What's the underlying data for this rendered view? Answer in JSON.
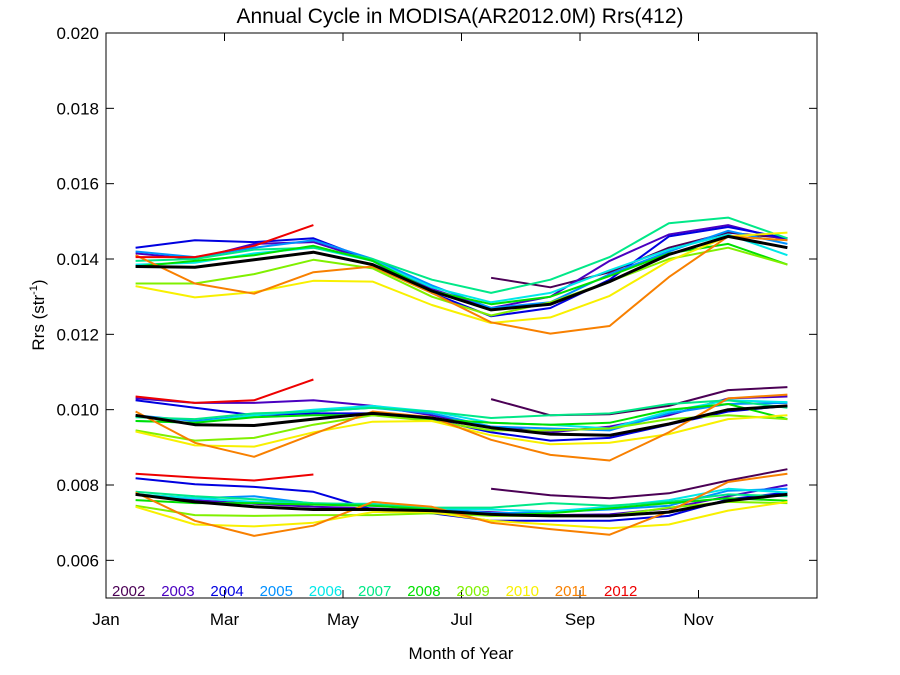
{
  "chart_data": {
    "type": "line",
    "title": "Annual Cycle in MODISA(AR2012.0M) Rrs(412)",
    "xlabel": "Month of Year",
    "ylabel": "Rrs (str",
    "ylabel_sup": "-1",
    "ylabel_end": ")",
    "xlim": [
      0,
      12
    ],
    "ylim": [
      0.005,
      0.02
    ],
    "x_ticks": [
      {
        "value": 0,
        "label": "Jan"
      },
      {
        "value": 2,
        "label": "Mar"
      },
      {
        "value": 4,
        "label": "May"
      },
      {
        "value": 6,
        "label": "Jul"
      },
      {
        "value": 8,
        "label": "Sep"
      },
      {
        "value": 10,
        "label": "Nov"
      }
    ],
    "y_ticks": [
      {
        "value": 0.006,
        "label": "0.006"
      },
      {
        "value": 0.008,
        "label": "0.008"
      },
      {
        "value": 0.01,
        "label": "0.010"
      },
      {
        "value": 0.012,
        "label": "0.012"
      },
      {
        "value": 0.014,
        "label": "0.014"
      },
      {
        "value": 0.016,
        "label": "0.016"
      },
      {
        "value": 0.018,
        "label": "0.018"
      },
      {
        "value": 0.02,
        "label": "0.020"
      }
    ],
    "x_months": [
      0.5,
      1.5,
      2.5,
      3.5,
      4.5,
      5.5,
      6.5,
      7.5,
      8.5,
      9.5,
      10.5,
      11.5
    ],
    "grid": false,
    "legend_position": "bottom-left inside plot",
    "series": [
      {
        "name": "2002",
        "color": "#4b0055",
        "upper": [
          null,
          null,
          null,
          null,
          null,
          null,
          0.0135,
          0.01325,
          0.01365,
          0.0143,
          0.0147,
          0.01455
        ],
        "middle": [
          null,
          null,
          null,
          null,
          null,
          null,
          0.01028,
          0.00985,
          0.00988,
          0.0101,
          0.01052,
          0.0106
        ],
        "lower": [
          null,
          null,
          null,
          null,
          null,
          null,
          0.0079,
          0.00773,
          0.00765,
          0.00778,
          0.00812,
          0.00842
        ]
      },
      {
        "name": "2003",
        "color": "#4a00c0",
        "upper": [
          0.01415,
          0.014,
          0.0144,
          0.01445,
          0.01395,
          0.0132,
          0.0127,
          0.013,
          0.01395,
          0.01465,
          0.0149,
          0.0145
        ],
        "middle": [
          0.0103,
          0.01018,
          0.01018,
          0.01025,
          0.0101,
          0.00985,
          0.00955,
          0.0094,
          0.00955,
          0.00985,
          0.0103,
          0.01035
        ],
        "lower": [
          0.00775,
          0.0076,
          0.0075,
          0.00742,
          0.00738,
          0.00732,
          0.00728,
          0.0072,
          0.00722,
          0.00738,
          0.0077,
          0.008
        ]
      },
      {
        "name": "2004",
        "color": "#0000e0",
        "upper": [
          0.0143,
          0.0145,
          0.01445,
          0.01455,
          0.01395,
          0.0131,
          0.01248,
          0.0127,
          0.01345,
          0.0146,
          0.01485,
          0.01455
        ],
        "middle": [
          0.01025,
          0.01005,
          0.00985,
          0.0099,
          0.0099,
          0.00975,
          0.0094,
          0.00918,
          0.00925,
          0.0096,
          0.00995,
          0.0101
        ],
        "lower": [
          0.00818,
          0.00802,
          0.00795,
          0.00782,
          0.00735,
          0.00725,
          0.00705,
          0.00705,
          0.00705,
          0.00718,
          0.00762,
          0.0078
        ]
      },
      {
        "name": "2005",
        "color": "#0090ff",
        "upper": [
          0.0142,
          0.01405,
          0.0143,
          0.0145,
          0.014,
          0.0133,
          0.0127,
          0.01285,
          0.0136,
          0.0142,
          0.01475,
          0.0144
        ],
        "middle": [
          0.00985,
          0.0097,
          0.00985,
          0.00995,
          0.01005,
          0.0099,
          0.00955,
          0.0095,
          0.00945,
          0.0099,
          0.01015,
          0.01018
        ],
        "lower": [
          0.00775,
          0.00765,
          0.0077,
          0.0075,
          0.00745,
          0.0074,
          0.00725,
          0.00728,
          0.00735,
          0.00745,
          0.00785,
          0.0079
        ]
      },
      {
        "name": "2006",
        "color": "#00e8e8",
        "upper": [
          0.01385,
          0.0139,
          0.01415,
          0.0143,
          0.01395,
          0.01325,
          0.01285,
          0.0131,
          0.0137,
          0.01425,
          0.01465,
          0.0141
        ],
        "middle": [
          0.0097,
          0.00965,
          0.00985,
          0.01,
          0.0101,
          0.00995,
          0.00965,
          0.0096,
          0.0095,
          0.00995,
          0.01025,
          0.0102
        ],
        "lower": [
          0.00775,
          0.00765,
          0.00755,
          0.0075,
          0.0075,
          0.00738,
          0.00735,
          0.0073,
          0.00742,
          0.0076,
          0.0079,
          0.0078
        ]
      },
      {
        "name": "2007",
        "color": "#00e888",
        "upper": [
          0.01395,
          0.014,
          0.01425,
          0.0143,
          0.014,
          0.01345,
          0.0131,
          0.01345,
          0.01405,
          0.01495,
          0.0151,
          0.01455
        ],
        "middle": [
          0.0098,
          0.00975,
          0.0099,
          0.00995,
          0.01005,
          0.00995,
          0.00978,
          0.00985,
          0.0099,
          0.01015,
          0.01025,
          0.01005
        ],
        "lower": [
          0.00782,
          0.0077,
          0.00762,
          0.00752,
          0.00748,
          0.0074,
          0.0074,
          0.00752,
          0.00745,
          0.00755,
          0.00775,
          0.0077
        ]
      },
      {
        "name": "2008",
        "color": "#00e000",
        "upper": [
          0.0138,
          0.01395,
          0.0141,
          0.01435,
          0.01395,
          0.01315,
          0.0128,
          0.013,
          0.01355,
          0.01415,
          0.0144,
          0.01385
        ],
        "middle": [
          0.0097,
          0.00965,
          0.0098,
          0.00985,
          0.00985,
          0.00975,
          0.00965,
          0.0096,
          0.00965,
          0.01,
          0.01015,
          0.00975
        ],
        "lower": [
          0.0076,
          0.00752,
          0.00752,
          0.00748,
          0.00745,
          0.00735,
          0.0072,
          0.00725,
          0.00738,
          0.00752,
          0.00765,
          0.00758
        ]
      },
      {
        "name": "2009",
        "color": "#80f000",
        "upper": [
          0.01335,
          0.01335,
          0.0136,
          0.01398,
          0.01375,
          0.013,
          0.0125,
          0.01285,
          0.0134,
          0.014,
          0.0143,
          0.01385
        ],
        "middle": [
          0.00945,
          0.00918,
          0.00925,
          0.0096,
          0.00985,
          0.0097,
          0.00945,
          0.00945,
          0.0095,
          0.00975,
          0.00985,
          0.00975
        ],
        "lower": [
          0.00745,
          0.0072,
          0.00718,
          0.0072,
          0.0072,
          0.00725,
          0.00718,
          0.00718,
          0.00718,
          0.0074,
          0.00755,
          0.00752
        ]
      },
      {
        "name": "2010",
        "color": "#f8f000",
        "upper": [
          0.01328,
          0.01298,
          0.01312,
          0.01342,
          0.0134,
          0.01278,
          0.0123,
          0.01245,
          0.01302,
          0.01395,
          0.0146,
          0.0147
        ],
        "middle": [
          0.00942,
          0.00905,
          0.00902,
          0.0094,
          0.00968,
          0.0097,
          0.00932,
          0.00908,
          0.00912,
          0.00935,
          0.00975,
          0.00985
        ],
        "lower": [
          0.00742,
          0.00695,
          0.0069,
          0.007,
          0.00728,
          0.00728,
          0.00705,
          0.00695,
          0.00685,
          0.00695,
          0.00732,
          0.00755
        ]
      },
      {
        "name": "2011",
        "color": "#f88000",
        "upper": [
          0.0141,
          0.01335,
          0.01308,
          0.01365,
          0.0138,
          0.0131,
          0.01232,
          0.01202,
          0.01222,
          0.01352,
          0.0146,
          0.0145
        ],
        "middle": [
          0.00995,
          0.00912,
          0.00875,
          0.00935,
          0.00995,
          0.0098,
          0.0092,
          0.0088,
          0.00865,
          0.0094,
          0.0103,
          0.0104
        ],
        "lower": [
          0.0078,
          0.00705,
          0.00665,
          0.00692,
          0.00755,
          0.00742,
          0.007,
          0.00683,
          0.00668,
          0.0073,
          0.00808,
          0.0083
        ]
      },
      {
        "name": "2012",
        "color": "#ee0000",
        "upper": [
          0.01405,
          0.01405,
          0.01435,
          0.0149,
          null,
          null,
          null,
          null,
          null,
          null,
          null,
          null
        ],
        "middle": [
          0.01035,
          0.01018,
          0.01025,
          0.0108,
          null,
          null,
          null,
          null,
          null,
          null,
          null,
          null
        ],
        "lower": [
          0.0083,
          0.0082,
          0.00812,
          0.00828,
          null,
          null,
          null,
          null,
          null,
          null,
          null,
          null
        ]
      }
    ],
    "mean": {
      "color": "#000000",
      "upper": [
        0.0138,
        0.01378,
        0.01398,
        0.01418,
        0.01385,
        0.01315,
        0.01265,
        0.0128,
        0.0134,
        0.01412,
        0.0146,
        0.0143
      ],
      "middle": [
        0.00985,
        0.0096,
        0.00958,
        0.00975,
        0.0099,
        0.00978,
        0.00952,
        0.00935,
        0.00932,
        0.00962,
        0.01,
        0.0101
      ],
      "lower": [
        0.00775,
        0.00755,
        0.00742,
        0.00735,
        0.00735,
        0.00732,
        0.00722,
        0.00718,
        0.00718,
        0.00728,
        0.00758,
        0.00775
      ]
    }
  }
}
